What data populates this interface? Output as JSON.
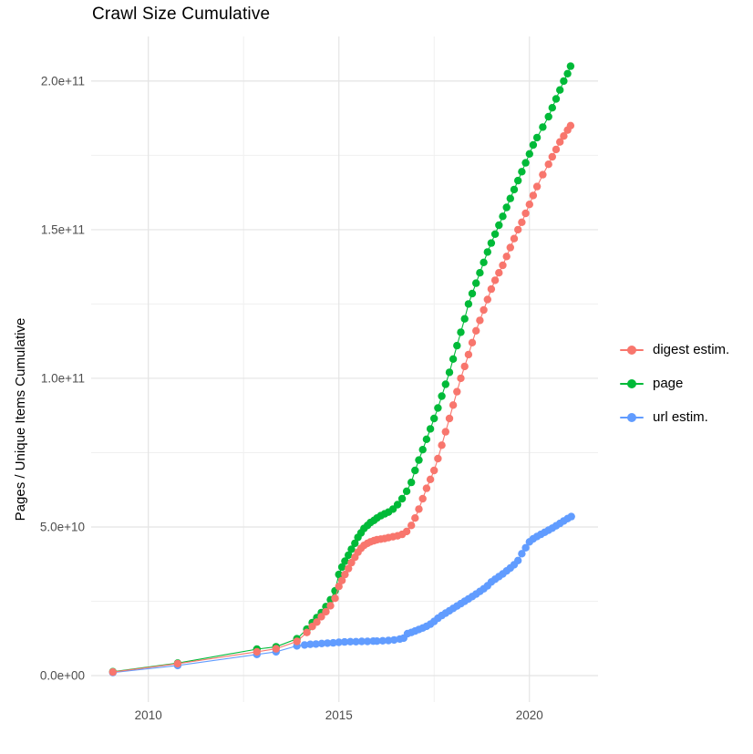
{
  "title": "Crawl Size Cumulative",
  "chart_data": {
    "type": "line",
    "title": "Crawl Size Cumulative",
    "xlabel": "",
    "ylabel": "Pages / Unique Items Cumulative",
    "legend_position": "right",
    "grid": "on",
    "background": "#ffffff",
    "grid_major_color": "#e4e4e4",
    "grid_minor_color": "#f0f0f0",
    "tick_label_color": "#4d4d4d",
    "xlim": [
      2008.5,
      2021.8
    ],
    "ylim_billions": [
      -8.9,
      215.0
    ],
    "value_unit": "1e9 (values stored in billions of pages / items)",
    "x_major_ticks": [
      2010,
      2015,
      2020
    ],
    "x_minor_ticks": [
      2012.5,
      2017.5
    ],
    "x_tick_labels": [
      "2010",
      "2015",
      "2020"
    ],
    "y_major_ticks_billions": [
      0,
      50,
      100,
      150,
      200
    ],
    "y_minor_ticks_billions": [
      25,
      75,
      125,
      175
    ],
    "y_tick_labels": [
      "0.0e+00",
      "5.0e+10",
      "1.0e+11",
      "1.5e+11",
      "2.0e+11"
    ],
    "draw_order": [
      1,
      2,
      0
    ],
    "series": [
      {
        "name": "digest estim.",
        "color": "#F8766D",
        "points_year_billions": [
          [
            2009.07,
            1.2
          ],
          [
            2010.77,
            4.0
          ],
          [
            2012.85,
            8.0
          ],
          [
            2013.35,
            9.0
          ],
          [
            2013.9,
            11.5
          ],
          [
            2014.16,
            14.5
          ],
          [
            2014.3,
            16.5
          ],
          [
            2014.42,
            18.0
          ],
          [
            2014.54,
            19.8
          ],
          [
            2014.66,
            21.5
          ],
          [
            2014.78,
            23.5
          ],
          [
            2014.9,
            26.0
          ],
          [
            2015.0,
            30.0
          ],
          [
            2015.08,
            32.0
          ],
          [
            2015.16,
            34.0
          ],
          [
            2015.25,
            36.0
          ],
          [
            2015.33,
            38.0
          ],
          [
            2015.42,
            39.8
          ],
          [
            2015.5,
            41.5
          ],
          [
            2015.58,
            42.8
          ],
          [
            2015.66,
            43.8
          ],
          [
            2015.75,
            44.5
          ],
          [
            2015.83,
            45.0
          ],
          [
            2015.92,
            45.4
          ],
          [
            2016.0,
            45.7
          ],
          [
            2016.1,
            45.9
          ],
          [
            2016.2,
            46.1
          ],
          [
            2016.3,
            46.4
          ],
          [
            2016.42,
            46.7
          ],
          [
            2016.54,
            47.0
          ],
          [
            2016.66,
            47.5
          ],
          [
            2016.78,
            48.5
          ],
          [
            2016.9,
            50.5
          ],
          [
            2017.0,
            53.0
          ],
          [
            2017.1,
            56.0
          ],
          [
            2017.2,
            59.5
          ],
          [
            2017.3,
            63.0
          ],
          [
            2017.4,
            66.0
          ],
          [
            2017.5,
            69.0
          ],
          [
            2017.6,
            73.0
          ],
          [
            2017.7,
            77.5
          ],
          [
            2017.8,
            82.0
          ],
          [
            2017.9,
            86.5
          ],
          [
            2018.0,
            91.0
          ],
          [
            2018.1,
            95.5
          ],
          [
            2018.2,
            100.0
          ],
          [
            2018.3,
            104.0
          ],
          [
            2018.4,
            108.0
          ],
          [
            2018.5,
            112.0
          ],
          [
            2018.6,
            116.0
          ],
          [
            2018.7,
            119.5
          ],
          [
            2018.8,
            123.0
          ],
          [
            2018.9,
            126.5
          ],
          [
            2019.0,
            130.0
          ],
          [
            2019.1,
            133.0
          ],
          [
            2019.2,
            135.5
          ],
          [
            2019.3,
            138.0
          ],
          [
            2019.4,
            141.0
          ],
          [
            2019.5,
            144.0
          ],
          [
            2019.6,
            147.0
          ],
          [
            2019.7,
            150.0
          ],
          [
            2019.8,
            152.5
          ],
          [
            2019.9,
            155.5
          ],
          [
            2020.0,
            158.5
          ],
          [
            2020.1,
            161.5
          ],
          [
            2020.2,
            164.5
          ],
          [
            2020.35,
            168.5
          ],
          [
            2020.5,
            172.0
          ],
          [
            2020.6,
            174.5
          ],
          [
            2020.7,
            177.0
          ],
          [
            2020.8,
            179.5
          ],
          [
            2020.9,
            181.5
          ],
          [
            2021.0,
            183.5
          ],
          [
            2021.08,
            185.0
          ]
        ]
      },
      {
        "name": "page",
        "color": "#00BA38",
        "points_year_billions": [
          [
            2009.07,
            1.3
          ],
          [
            2010.77,
            4.2
          ],
          [
            2012.85,
            8.9
          ],
          [
            2013.35,
            9.7
          ],
          [
            2013.9,
            12.4
          ],
          [
            2014.16,
            15.6
          ],
          [
            2014.3,
            17.8
          ],
          [
            2014.42,
            19.5
          ],
          [
            2014.54,
            21.2
          ],
          [
            2014.66,
            23.2
          ],
          [
            2014.78,
            25.5
          ],
          [
            2014.9,
            28.5
          ],
          [
            2015.0,
            34.0
          ],
          [
            2015.08,
            36.5
          ],
          [
            2015.16,
            38.5
          ],
          [
            2015.25,
            40.5
          ],
          [
            2015.33,
            42.5
          ],
          [
            2015.42,
            44.5
          ],
          [
            2015.5,
            46.5
          ],
          [
            2015.58,
            48.0
          ],
          [
            2015.66,
            49.5
          ],
          [
            2015.75,
            50.5
          ],
          [
            2015.83,
            51.5
          ],
          [
            2015.92,
            52.2
          ],
          [
            2016.0,
            53.0
          ],
          [
            2016.1,
            53.8
          ],
          [
            2016.2,
            54.4
          ],
          [
            2016.3,
            55.0
          ],
          [
            2016.42,
            56.0
          ],
          [
            2016.54,
            57.5
          ],
          [
            2016.66,
            59.5
          ],
          [
            2016.78,
            62.0
          ],
          [
            2016.9,
            65.0
          ],
          [
            2017.0,
            69.0
          ],
          [
            2017.1,
            72.5
          ],
          [
            2017.2,
            76.0
          ],
          [
            2017.3,
            79.5
          ],
          [
            2017.4,
            83.0
          ],
          [
            2017.5,
            86.5
          ],
          [
            2017.6,
            90.0
          ],
          [
            2017.7,
            94.0
          ],
          [
            2017.8,
            98.0
          ],
          [
            2017.9,
            102.0
          ],
          [
            2018.0,
            106.5
          ],
          [
            2018.1,
            111.0
          ],
          [
            2018.2,
            115.5
          ],
          [
            2018.3,
            120.0
          ],
          [
            2018.4,
            125.0
          ],
          [
            2018.5,
            128.5
          ],
          [
            2018.6,
            132.0
          ],
          [
            2018.7,
            135.5
          ],
          [
            2018.8,
            139.0
          ],
          [
            2018.9,
            142.5
          ],
          [
            2019.0,
            145.5
          ],
          [
            2019.1,
            148.5
          ],
          [
            2019.2,
            151.5
          ],
          [
            2019.3,
            154.5
          ],
          [
            2019.4,
            157.5
          ],
          [
            2019.5,
            160.5
          ],
          [
            2019.6,
            163.5
          ],
          [
            2019.7,
            166.5
          ],
          [
            2019.8,
            169.5
          ],
          [
            2019.9,
            172.5
          ],
          [
            2020.0,
            175.5
          ],
          [
            2020.1,
            178.5
          ],
          [
            2020.2,
            181.0
          ],
          [
            2020.35,
            184.5
          ],
          [
            2020.5,
            188.0
          ],
          [
            2020.6,
            191.0
          ],
          [
            2020.7,
            194.0
          ],
          [
            2020.8,
            197.0
          ],
          [
            2020.9,
            200.0
          ],
          [
            2021.0,
            202.5
          ],
          [
            2021.08,
            205.0
          ]
        ]
      },
      {
        "name": "url estim.",
        "color": "#619CFF",
        "points_year_billions": [
          [
            2009.07,
            1.0
          ],
          [
            2010.77,
            3.4
          ],
          [
            2012.85,
            7.1
          ],
          [
            2013.35,
            8.0
          ],
          [
            2013.9,
            10.0
          ],
          [
            2014.1,
            10.3
          ],
          [
            2014.25,
            10.5
          ],
          [
            2014.4,
            10.6
          ],
          [
            2014.55,
            10.8
          ],
          [
            2014.7,
            10.9
          ],
          [
            2014.85,
            11.0
          ],
          [
            2015.0,
            11.2
          ],
          [
            2015.15,
            11.3
          ],
          [
            2015.3,
            11.4
          ],
          [
            2015.45,
            11.4
          ],
          [
            2015.6,
            11.5
          ],
          [
            2015.75,
            11.5
          ],
          [
            2015.9,
            11.6
          ],
          [
            2016.0,
            11.6
          ],
          [
            2016.15,
            11.7
          ],
          [
            2016.3,
            11.8
          ],
          [
            2016.45,
            12.0
          ],
          [
            2016.6,
            12.3
          ],
          [
            2016.7,
            12.6
          ],
          [
            2016.8,
            14.1
          ],
          [
            2016.9,
            14.5
          ],
          [
            2017.0,
            15.0
          ],
          [
            2017.1,
            15.5
          ],
          [
            2017.2,
            16.0
          ],
          [
            2017.3,
            16.6
          ],
          [
            2017.4,
            17.3
          ],
          [
            2017.5,
            18.2
          ],
          [
            2017.6,
            19.3
          ],
          [
            2017.7,
            20.2
          ],
          [
            2017.8,
            21.0
          ],
          [
            2017.9,
            21.8
          ],
          [
            2018.0,
            22.6
          ],
          [
            2018.1,
            23.4
          ],
          [
            2018.2,
            24.2
          ],
          [
            2018.3,
            25.0
          ],
          [
            2018.4,
            25.8
          ],
          [
            2018.5,
            26.6
          ],
          [
            2018.6,
            27.4
          ],
          [
            2018.7,
            28.3
          ],
          [
            2018.8,
            29.2
          ],
          [
            2018.9,
            30.2
          ],
          [
            2019.0,
            31.5
          ],
          [
            2019.1,
            32.4
          ],
          [
            2019.2,
            33.3
          ],
          [
            2019.3,
            34.2
          ],
          [
            2019.4,
            35.2
          ],
          [
            2019.5,
            36.2
          ],
          [
            2019.6,
            37.3
          ],
          [
            2019.7,
            38.7
          ],
          [
            2019.8,
            41.0
          ],
          [
            2019.9,
            43.0
          ],
          [
            2020.0,
            45.0
          ],
          [
            2020.1,
            46.0
          ],
          [
            2020.2,
            46.8
          ],
          [
            2020.3,
            47.5
          ],
          [
            2020.4,
            48.2
          ],
          [
            2020.5,
            48.9
          ],
          [
            2020.6,
            49.6
          ],
          [
            2020.7,
            50.4
          ],
          [
            2020.8,
            51.2
          ],
          [
            2020.9,
            52.0
          ],
          [
            2021.0,
            52.8
          ],
          [
            2021.1,
            53.5
          ]
        ]
      }
    ]
  }
}
